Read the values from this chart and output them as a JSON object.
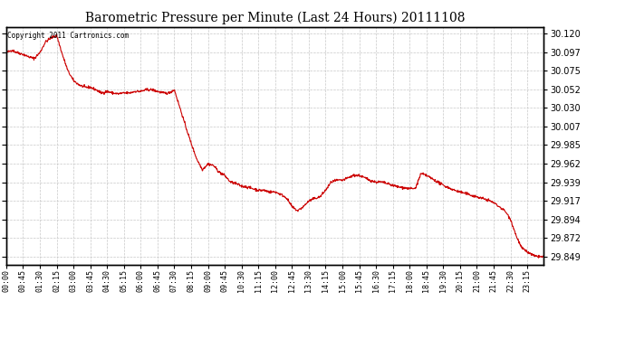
{
  "title": "Barometric Pressure per Minute (Last 24 Hours) 20111108",
  "copyright": "Copyright 2011 Cartronics.com",
  "line_color": "#cc0000",
  "background_color": "#ffffff",
  "grid_color": "#c8c8c8",
  "ylim_min": 29.84,
  "ylim_max": 30.128,
  "ytick_values": [
    29.849,
    29.872,
    29.894,
    29.917,
    29.939,
    29.962,
    29.985,
    30.007,
    30.03,
    30.052,
    30.075,
    30.097,
    30.12
  ],
  "xtick_labels": [
    "00:00",
    "00:45",
    "01:30",
    "02:15",
    "03:00",
    "03:45",
    "04:30",
    "05:15",
    "06:00",
    "06:45",
    "07:30",
    "08:15",
    "09:00",
    "09:45",
    "10:30",
    "11:15",
    "12:00",
    "12:45",
    "13:30",
    "14:15",
    "15:00",
    "15:45",
    "16:30",
    "17:15",
    "18:00",
    "18:45",
    "19:30",
    "20:15",
    "21:00",
    "21:45",
    "22:30",
    "23:15"
  ],
  "xtick_positions_minutes": [
    0,
    45,
    90,
    135,
    180,
    225,
    270,
    315,
    360,
    405,
    450,
    495,
    540,
    585,
    630,
    675,
    720,
    765,
    810,
    855,
    900,
    945,
    990,
    1035,
    1080,
    1125,
    1170,
    1215,
    1260,
    1305,
    1350,
    1395
  ],
  "keypoints": [
    [
      0,
      30.097
    ],
    [
      15,
      30.1
    ],
    [
      30,
      30.097
    ],
    [
      45,
      30.095
    ],
    [
      60,
      30.092
    ],
    [
      75,
      30.09
    ],
    [
      90,
      30.097
    ],
    [
      105,
      30.11
    ],
    [
      120,
      30.115
    ],
    [
      135,
      30.118
    ],
    [
      150,
      30.095
    ],
    [
      165,
      30.075
    ],
    [
      180,
      30.063
    ],
    [
      195,
      30.058
    ],
    [
      210,
      30.055
    ],
    [
      225,
      30.055
    ],
    [
      240,
      30.052
    ],
    [
      255,
      30.048
    ],
    [
      270,
      30.05
    ],
    [
      285,
      30.048
    ],
    [
      300,
      30.047
    ],
    [
      315,
      30.048
    ],
    [
      330,
      30.048
    ],
    [
      345,
      30.05
    ],
    [
      360,
      30.05
    ],
    [
      375,
      30.052
    ],
    [
      390,
      30.052
    ],
    [
      405,
      30.05
    ],
    [
      420,
      30.048
    ],
    [
      435,
      30.048
    ],
    [
      450,
      30.052
    ],
    [
      465,
      30.03
    ],
    [
      480,
      30.008
    ],
    [
      495,
      29.987
    ],
    [
      510,
      29.968
    ],
    [
      525,
      29.955
    ],
    [
      540,
      29.962
    ],
    [
      555,
      29.96
    ],
    [
      570,
      29.952
    ],
    [
      585,
      29.948
    ],
    [
      600,
      29.94
    ],
    [
      615,
      29.938
    ],
    [
      630,
      29.935
    ],
    [
      645,
      29.934
    ],
    [
      660,
      29.932
    ],
    [
      675,
      29.93
    ],
    [
      690,
      29.93
    ],
    [
      705,
      29.928
    ],
    [
      720,
      29.928
    ],
    [
      735,
      29.925
    ],
    [
      750,
      29.921
    ],
    [
      765,
      29.91
    ],
    [
      780,
      29.905
    ],
    [
      795,
      29.91
    ],
    [
      810,
      29.917
    ],
    [
      825,
      29.92
    ],
    [
      840,
      29.922
    ],
    [
      855,
      29.93
    ],
    [
      870,
      29.94
    ],
    [
      885,
      29.942
    ],
    [
      900,
      29.942
    ],
    [
      915,
      29.945
    ],
    [
      930,
      29.948
    ],
    [
      945,
      29.948
    ],
    [
      960,
      29.945
    ],
    [
      975,
      29.942
    ],
    [
      990,
      29.94
    ],
    [
      1005,
      29.94
    ],
    [
      1020,
      29.938
    ],
    [
      1035,
      29.936
    ],
    [
      1050,
      29.934
    ],
    [
      1065,
      29.933
    ],
    [
      1080,
      29.932
    ],
    [
      1095,
      29.932
    ],
    [
      1110,
      29.95
    ],
    [
      1125,
      29.948
    ],
    [
      1140,
      29.944
    ],
    [
      1155,
      29.94
    ],
    [
      1170,
      29.936
    ],
    [
      1185,
      29.933
    ],
    [
      1200,
      29.93
    ],
    [
      1215,
      29.928
    ],
    [
      1230,
      29.926
    ],
    [
      1245,
      29.924
    ],
    [
      1260,
      29.922
    ],
    [
      1275,
      29.92
    ],
    [
      1290,
      29.918
    ],
    [
      1305,
      29.915
    ],
    [
      1320,
      29.91
    ],
    [
      1335,
      29.905
    ],
    [
      1350,
      29.895
    ],
    [
      1365,
      29.875
    ],
    [
      1380,
      29.86
    ],
    [
      1395,
      29.855
    ],
    [
      1415,
      29.85
    ],
    [
      1439,
      29.849
    ]
  ]
}
